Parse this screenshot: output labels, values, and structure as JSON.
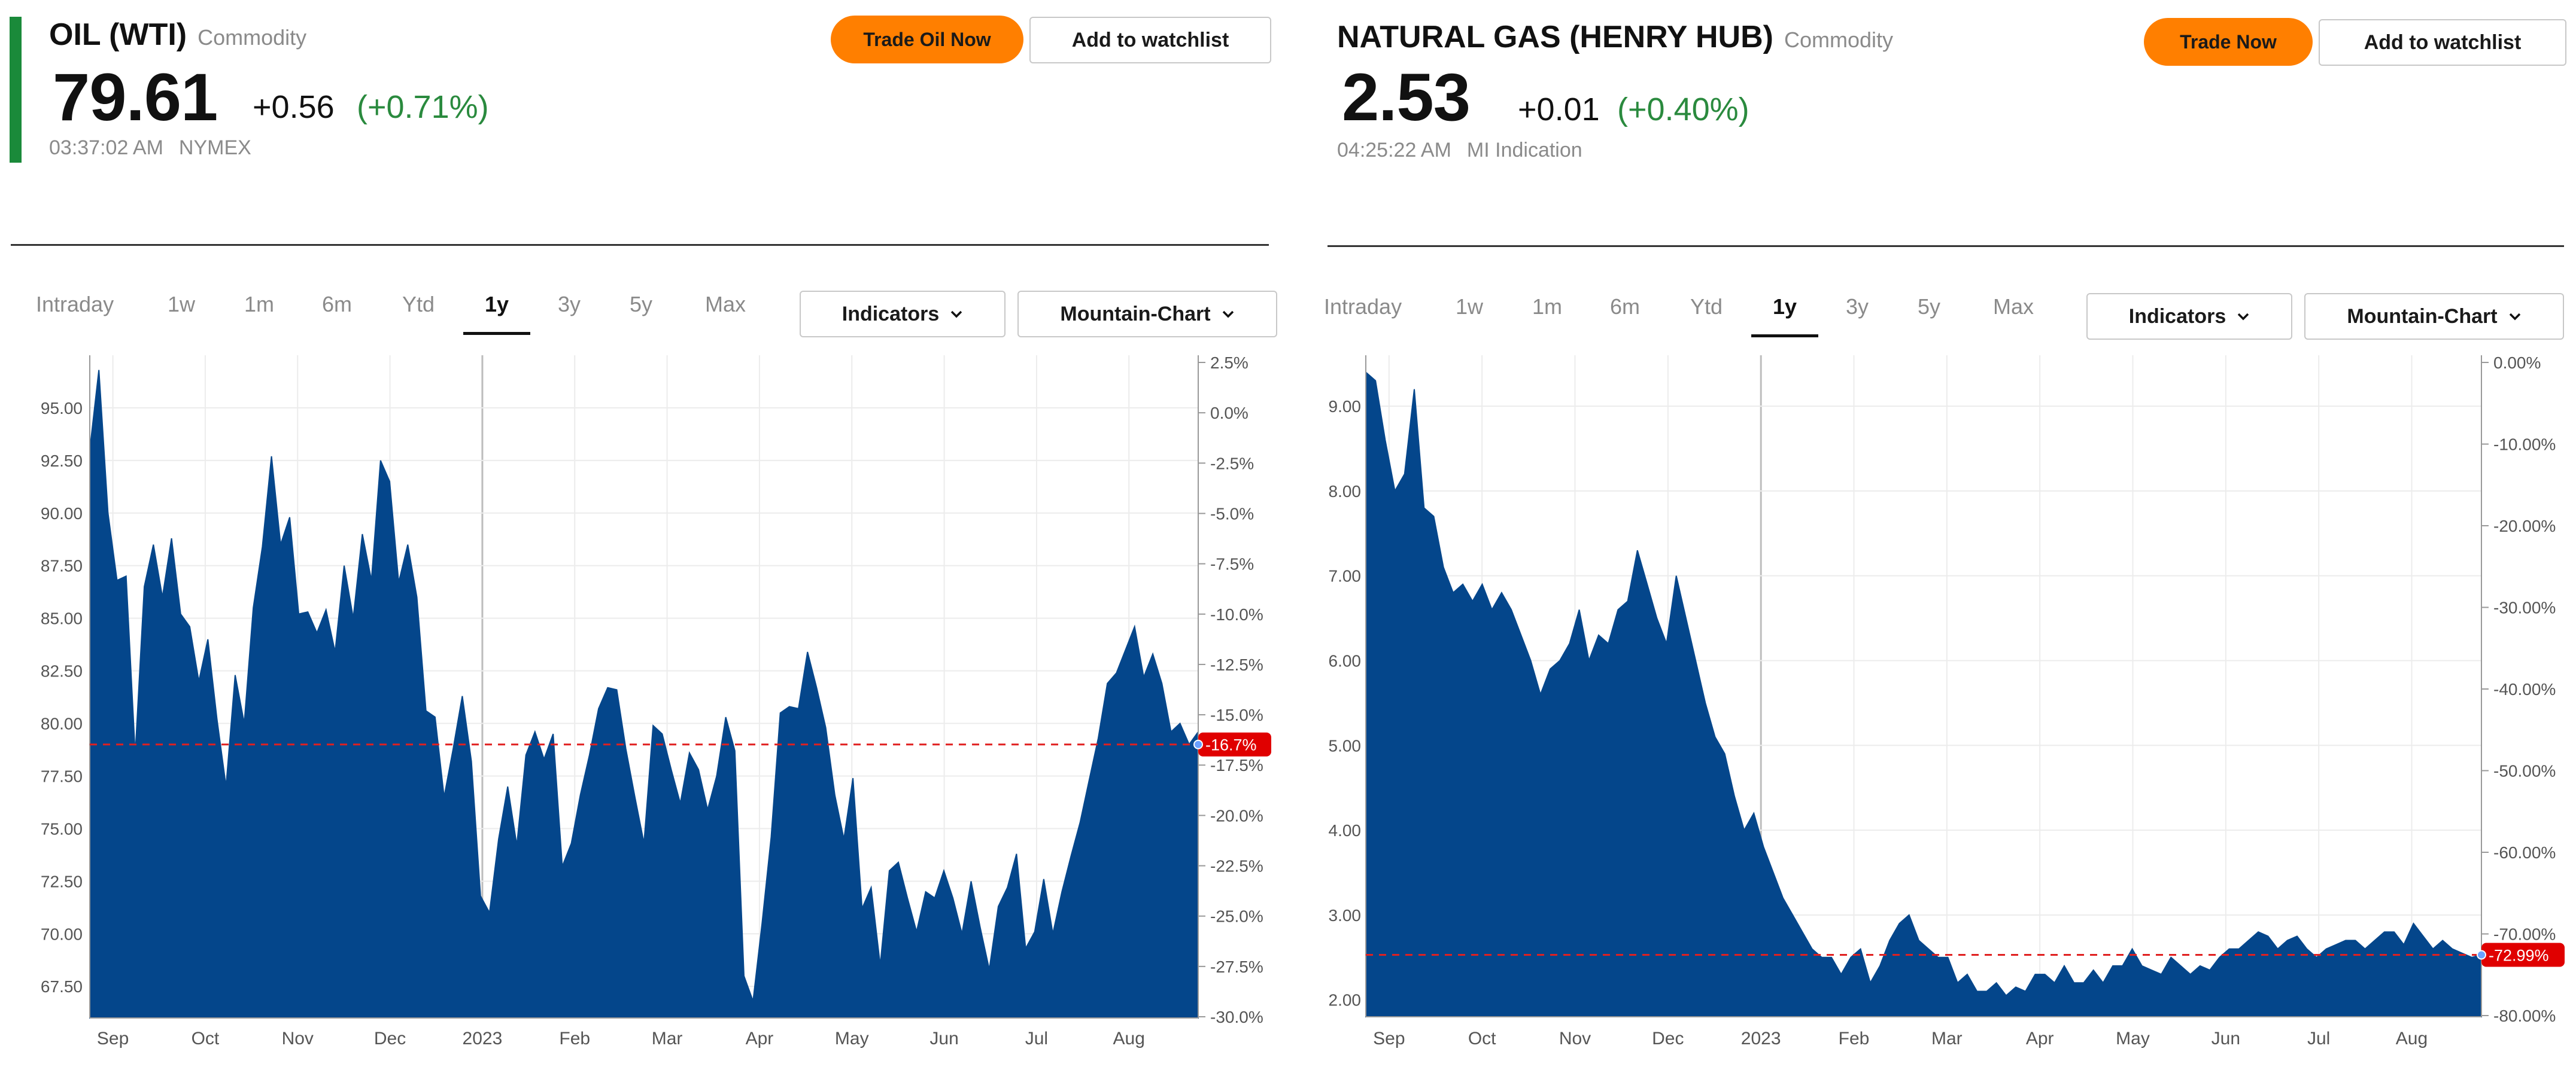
{
  "colors": {
    "area": "#04468b",
    "accent_up": "#2a8a3e",
    "button_orange": "#ff7f00",
    "ref_line": "#e02020",
    "badge": "#e00000"
  },
  "panels": [
    {
      "name": "OIL (WTI)",
      "category": "Commodity",
      "price": "79.61",
      "change": "+0.56",
      "change_pct": "(+0.71%)",
      "time": "03:37:02 AM",
      "exchange": "NYMEX",
      "trade_button": "Trade Oil Now",
      "watchlist_button": "Add to watchlist",
      "tabs": [
        "Intraday",
        "1w",
        "1m",
        "6m",
        "Ytd",
        "1y",
        "3y",
        "5y",
        "Max"
      ],
      "active_tab": "1y",
      "indicators_label": "Indicators",
      "charttype_label": "Mountain-Chart",
      "chart_data": {
        "type": "area",
        "x_labels": [
          "Sep",
          "Oct",
          "Nov",
          "Dec",
          "2023",
          "Feb",
          "Mar",
          "Apr",
          "May",
          "Jun",
          "Jul",
          "Aug"
        ],
        "left_ticks": [
          "95.00",
          "92.50",
          "90.00",
          "87.50",
          "85.00",
          "82.50",
          "80.00",
          "77.50",
          "75.00",
          "72.50",
          "70.00",
          "67.50"
        ],
        "right_ticks": [
          "2.5%",
          "0.0%",
          "-2.5%",
          "-5.0%",
          "-7.5%",
          "-10.0%",
          "-12.5%",
          "-15.0%",
          "-17.5%",
          "-20.0%",
          "-22.5%",
          "-25.0%",
          "-27.5%",
          "-30.0%"
        ],
        "ylim": [
          66.0,
          97.5
        ],
        "pct_range": [
          -30.0,
          2.5
        ],
        "baseline_value": 79.0,
        "badge_label": "-16.7%",
        "values": [
          93.0,
          96.8,
          90.0,
          86.8,
          87.0,
          78.5,
          86.5,
          88.5,
          86.0,
          88.8,
          85.2,
          84.6,
          82.0,
          84.0,
          80.2,
          77.0,
          82.3,
          80.0,
          85.5,
          88.4,
          92.7,
          88.5,
          89.8,
          85.2,
          85.3,
          84.3,
          85.4,
          83.4,
          87.5,
          85.0,
          89.0,
          86.8,
          92.5,
          91.5,
          86.7,
          88.5,
          86.0,
          80.6,
          80.3,
          76.5,
          78.8,
          81.3,
          78.2,
          71.8,
          71.0,
          74.5,
          77.0,
          74.2,
          78.5,
          79.6,
          78.3,
          79.5,
          73.2,
          74.3,
          76.6,
          78.5,
          80.7,
          81.7,
          81.6,
          78.8,
          76.5,
          74.3,
          79.9,
          79.5,
          77.8,
          76.2,
          78.6,
          77.8,
          75.9,
          77.5,
          80.3,
          78.7,
          68.0,
          66.8,
          70.5,
          74.6,
          80.5,
          80.8,
          80.7,
          83.4,
          81.7,
          79.8,
          76.6,
          74.5,
          77.4,
          71.2,
          72.2,
          68.5,
          73.0,
          73.4,
          71.7,
          70.1,
          72.0,
          71.7,
          73.0,
          71.7,
          70.0,
          72.5,
          70.3,
          68.3,
          71.3,
          72.2,
          73.8,
          69.3,
          70.1,
          72.6,
          70.0,
          72.0,
          73.7,
          75.3,
          77.3,
          79.3,
          81.9,
          82.4,
          83.5,
          84.6,
          82.2,
          83.3,
          81.9,
          79.6,
          80.0,
          79.0,
          79.6
        ]
      }
    },
    {
      "name": "NATURAL GAS (HENRY HUB)",
      "category": "Commodity",
      "price": "2.53",
      "change": "+0.01",
      "change_pct": "(+0.40%)",
      "time": "04:25:22 AM",
      "exchange": "MI Indication",
      "trade_button": "Trade Now",
      "watchlist_button": "Add to watchlist",
      "tabs": [
        "Intraday",
        "1w",
        "1m",
        "6m",
        "Ytd",
        "1y",
        "3y",
        "5y",
        "Max"
      ],
      "active_tab": "1y",
      "indicators_label": "Indicators",
      "charttype_label": "Mountain-Chart",
      "chart_data": {
        "type": "area",
        "x_labels": [
          "Sep",
          "Oct",
          "Nov",
          "Dec",
          "2023",
          "Feb",
          "Mar",
          "Apr",
          "May",
          "Jun",
          "Jul",
          "Aug"
        ],
        "left_ticks": [
          "9.00",
          "8.00",
          "7.00",
          "6.00",
          "5.00",
          "4.00",
          "3.00",
          "2.00"
        ],
        "right_ticks": [
          "0.00%",
          "-10.00%",
          "-20.00%",
          "-30.00%",
          "-40.00%",
          "-50.00%",
          "-60.00%",
          "-70.00%",
          "-80.00%"
        ],
        "ylim": [
          1.8,
          9.6
        ],
        "pct_range": [
          -80.0,
          0.0
        ],
        "baseline_value": 2.53,
        "badge_label": "-72.99%",
        "values": [
          9.4,
          9.3,
          8.6,
          8.0,
          8.2,
          9.2,
          7.8,
          7.7,
          7.1,
          6.8,
          6.9,
          6.7,
          6.9,
          6.6,
          6.8,
          6.6,
          6.3,
          6.0,
          5.6,
          5.9,
          6.0,
          6.2,
          6.6,
          6.0,
          6.3,
          6.2,
          6.6,
          6.7,
          7.3,
          6.9,
          6.5,
          6.2,
          7.0,
          6.5,
          6.0,
          5.5,
          5.1,
          4.9,
          4.4,
          4.0,
          4.2,
          3.8,
          3.5,
          3.2,
          3.0,
          2.8,
          2.6,
          2.5,
          2.5,
          2.3,
          2.5,
          2.6,
          2.2,
          2.4,
          2.7,
          2.9,
          3.0,
          2.7,
          2.6,
          2.5,
          2.5,
          2.2,
          2.3,
          2.1,
          2.1,
          2.2,
          2.05,
          2.15,
          2.1,
          2.3,
          2.3,
          2.2,
          2.4,
          2.2,
          2.2,
          2.35,
          2.2,
          2.4,
          2.4,
          2.6,
          2.4,
          2.35,
          2.3,
          2.5,
          2.4,
          2.3,
          2.4,
          2.35,
          2.5,
          2.6,
          2.6,
          2.7,
          2.8,
          2.75,
          2.6,
          2.7,
          2.75,
          2.6,
          2.5,
          2.6,
          2.65,
          2.7,
          2.7,
          2.6,
          2.7,
          2.8,
          2.8,
          2.65,
          2.9,
          2.75,
          2.6,
          2.7,
          2.6,
          2.55,
          2.5,
          2.53
        ]
      }
    }
  ]
}
